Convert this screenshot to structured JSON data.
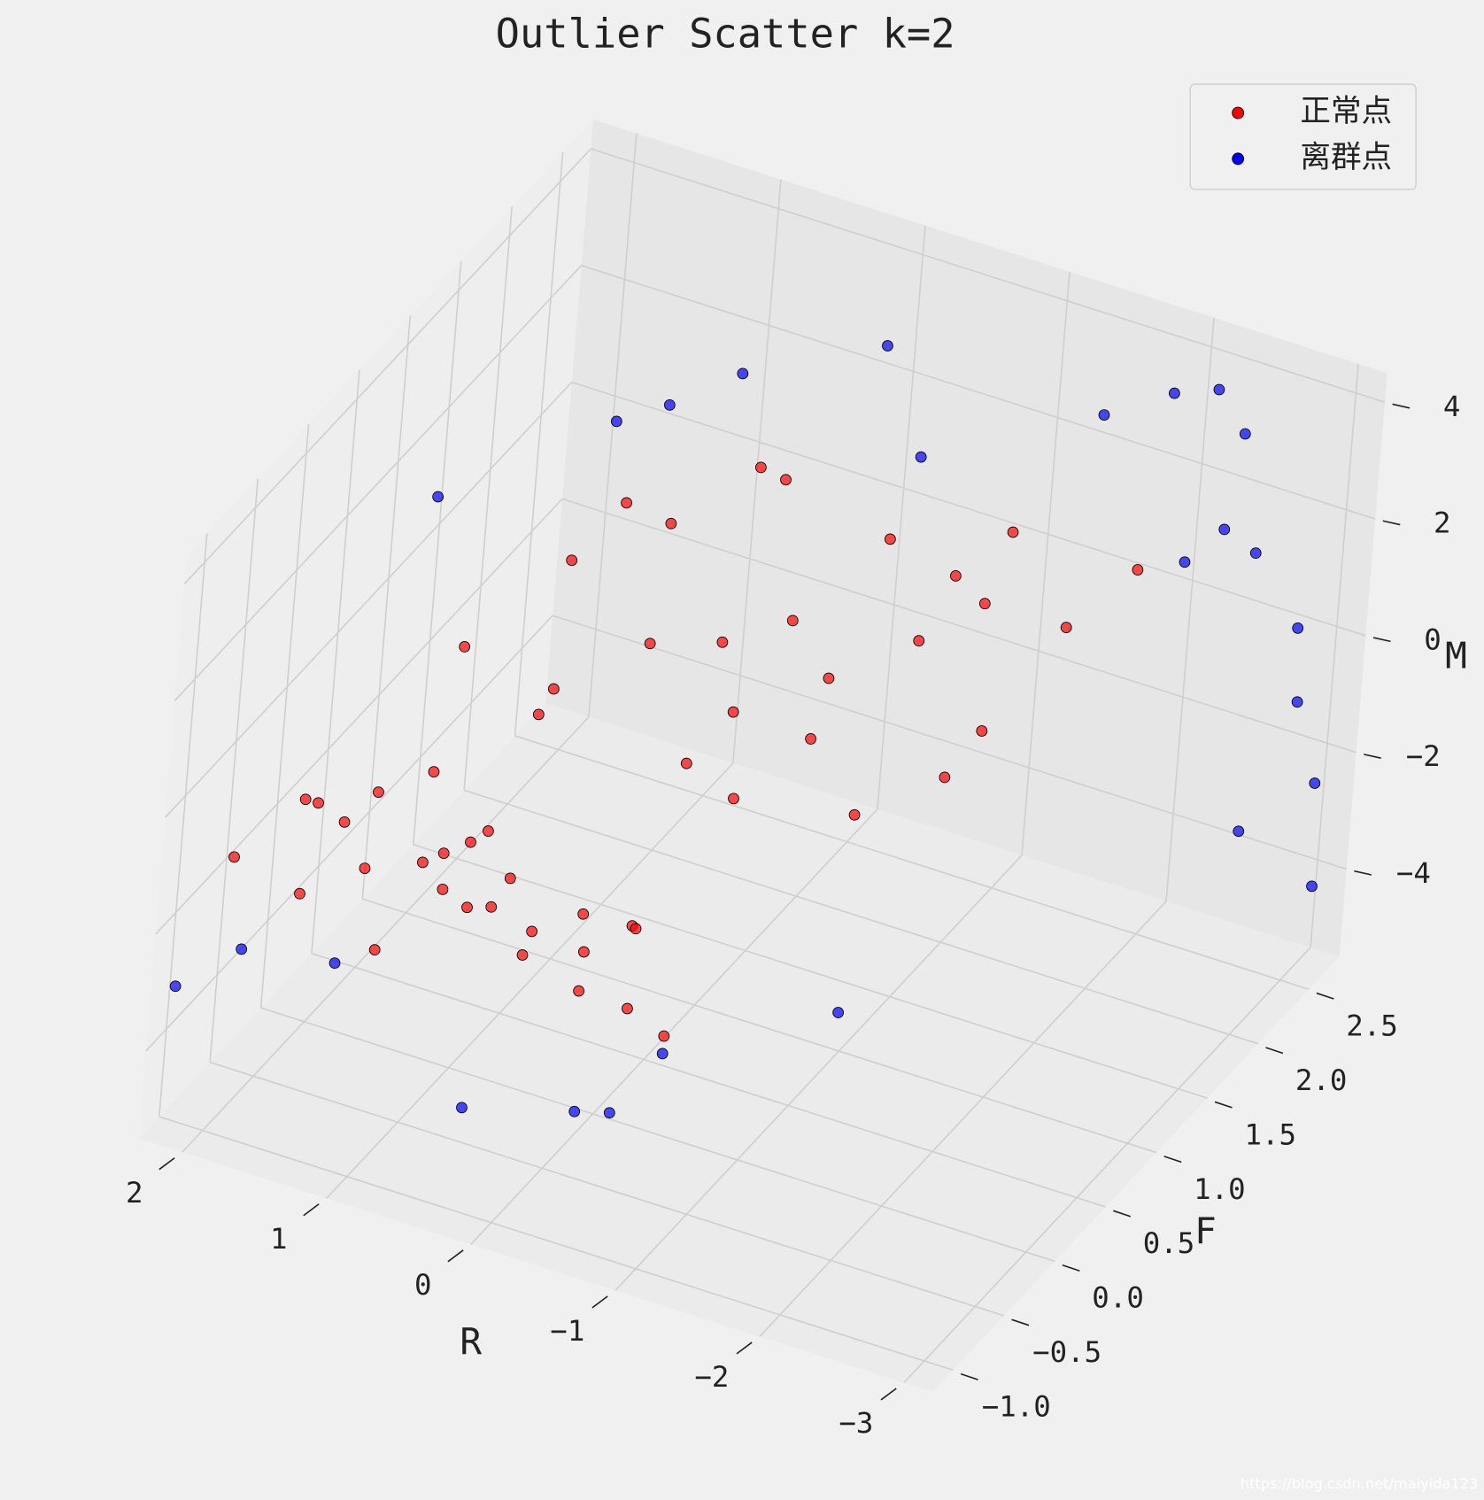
{
  "chart_data": {
    "type": "scatter3d",
    "title": "Outlier Scatter k=2",
    "xlabel": "R",
    "ylabel": "F",
    "zlabel": "M",
    "xlim": [
      -3.2,
      2.3
    ],
    "ylim": [
      -1.2,
      2.8
    ],
    "zlim": [
      -5.5,
      4.5
    ],
    "xticks": [
      {
        "value": -3,
        "label": "−3"
      },
      {
        "value": -2,
        "label": "−2"
      },
      {
        "value": -1,
        "label": "−1"
      },
      0,
      1,
      2
    ],
    "yticks": [
      {
        "value": -1,
        "label": "−1.0"
      },
      {
        "value": -0.5,
        "label": "−0.5"
      },
      {
        "value": 0,
        "label": "0.0"
      },
      0.5,
      {
        "value": 1,
        "label": "1.0"
      },
      1.5,
      {
        "value": 2,
        "label": "2.0"
      },
      2.5
    ],
    "zticks": [
      {
        "value": -4,
        "label": "−4"
      },
      {
        "value": -2,
        "label": "−2"
      },
      0,
      2,
      4
    ],
    "grid": true,
    "legend": "upper right",
    "watermark": "https://blog.csdn.net/maiyida123",
    "series": [
      {
        "name": "正常点",
        "color": "#ff0000",
        "x": [
          2.0,
          1.8,
          1.6,
          1.5,
          1.3,
          1.2,
          1.0,
          0.9,
          0.7,
          0.5,
          0.3,
          0.2,
          0.0,
          -0.2,
          -0.4,
          -0.6,
          -0.8,
          -1.0,
          1.9,
          1.4,
          0.8,
          0.4,
          -0.1,
          -0.5,
          1.1,
          0.6,
          1.5,
          1.2,
          1.0,
          0.8,
          0.5,
          0.3,
          0.0,
          -0.2,
          -0.5,
          -0.7,
          -1.0,
          -1.2,
          -1.5,
          -1.8,
          -2.0,
          0.9,
          0.2,
          -0.4,
          -0.9,
          -1.3,
          1.3,
          0.6,
          -0.1,
          -0.6,
          -1.1,
          -1.6
        ],
        "y": [
          -0.9,
          -0.5,
          -0.8,
          -0.2,
          -0.6,
          -0.1,
          -0.9,
          -0.4,
          -0.7,
          -0.3,
          -0.8,
          -0.5,
          -0.9,
          -0.6,
          -0.9,
          -0.7,
          -1.0,
          -0.9,
          -0.2,
          -0.7,
          -0.1,
          -0.9,
          -0.4,
          -0.5,
          -0.3,
          -0.6,
          0.6,
          1.2,
          0.8,
          1.6,
          1.0,
          2.0,
          0.7,
          1.4,
          1.9,
          0.9,
          1.5,
          2.1,
          1.1,
          1.8,
          2.2,
          0.5,
          1.3,
          0.6,
          2.0,
          1.7,
          1.9,
          2.2,
          1.0,
          1.2,
          0.8,
          1.3
        ],
        "z": [
          -1.0,
          -0.6,
          -1.5,
          -0.8,
          -1.2,
          -0.4,
          -1.8,
          -1.0,
          -0.9,
          -1.3,
          -0.7,
          -1.6,
          -1.1,
          -0.8,
          -1.4,
          -0.5,
          -1.2,
          -1.7,
          -1.3,
          -0.3,
          -1.1,
          -0.6,
          -1.9,
          -1.0,
          -1.5,
          -0.2,
          0.2,
          0.8,
          -0.5,
          1.0,
          0.3,
          1.4,
          -0.8,
          0.5,
          1.2,
          -0.2,
          0.6,
          1.5,
          -0.6,
          0.9,
          1.3,
          -0.3,
          0.0,
          -0.9,
          0.7,
          1.1,
          0.4,
          1.0,
          -0.4,
          0.2,
          -1.0,
          -0.1
        ]
      },
      {
        "name": "离群点",
        "color": "#0000ff",
        "x": [
          2.2,
          1.9,
          1.7,
          1.0,
          0.2,
          -0.5,
          -1.0,
          -1.6,
          -1.9,
          1.6,
          0.9,
          0.0,
          -0.6,
          -2.4,
          -2.6,
          -2.8,
          -2.9,
          -3.0,
          -2.7,
          -2.5,
          -1.5,
          -2.2,
          -0.8,
          1.2,
          -3.1,
          -2.0
        ],
        "y": [
          -1.1,
          -0.9,
          0.5,
          1.8,
          -1.1,
          -1.0,
          -0.9,
          0.0,
          2.6,
          2.2,
          2.4,
          2.5,
          2.0,
          2.6,
          2.5,
          2.7,
          2.6,
          2.7,
          2.4,
          2.3,
          2.5,
          2.6,
          -1.1,
          -1.0,
          2.6,
          2.7
        ],
        "z": [
          -3.0,
          -2.5,
          2.8,
          2.5,
          -3.5,
          -3.2,
          -2.0,
          -2.5,
          3.5,
          1.0,
          2.0,
          3.0,
          2.5,
          3.2,
          1.5,
          0.0,
          -1.0,
          -2.5,
          -3.0,
          2.2,
          3.0,
          3.8,
          -2.8,
          -2.0,
          -4.0,
          0.5
        ]
      }
    ]
  }
}
